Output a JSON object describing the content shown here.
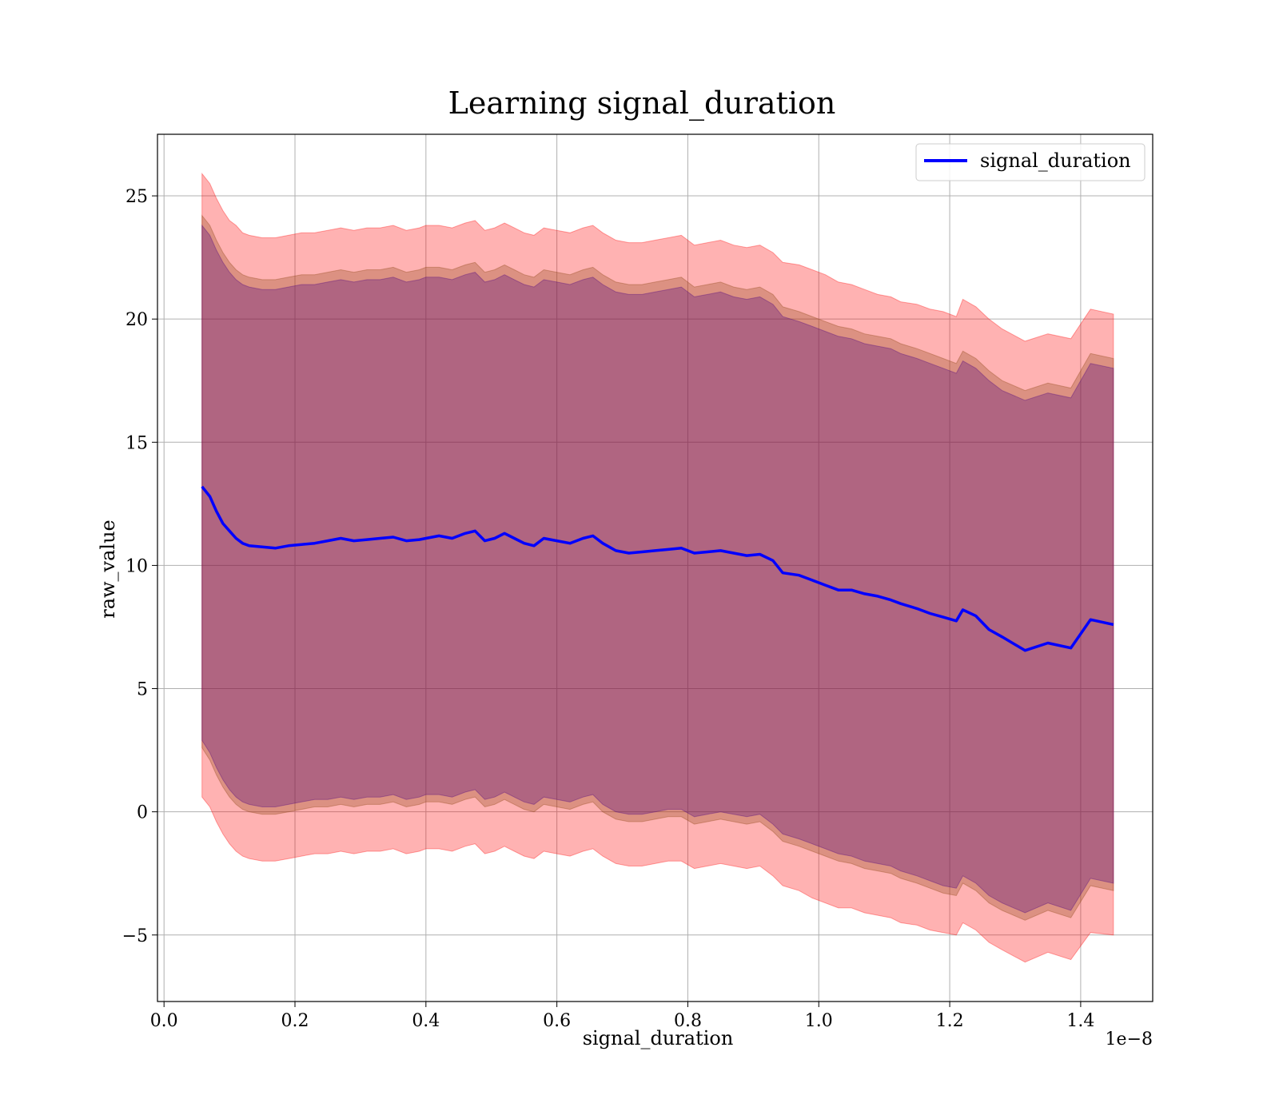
{
  "chart_data": {
    "type": "line",
    "title": "Learning signal_duration",
    "xlabel": "signal_duration",
    "ylabel": "raw_value",
    "x_offset_text": "1e−8",
    "x_ticks": [
      "0.0",
      "0.2",
      "0.4",
      "0.6",
      "0.8",
      "1.0",
      "1.2",
      "1.4"
    ],
    "y_ticks": [
      "−5",
      "0",
      "5",
      "10",
      "15",
      "20",
      "25"
    ],
    "xlim": [
      -0.01,
      1.51
    ],
    "ylim": [
      -7.7,
      27.5
    ],
    "grid": true,
    "legend": {
      "placement": "top-right",
      "entries": [
        "signal_duration"
      ]
    },
    "colors": {
      "line": "#0000ff",
      "band_outer": "#ff0000",
      "band_mid": "#8b4513",
      "band_inner": "#4b0082",
      "grid": "#b0b0b0"
    },
    "series": [
      {
        "name": "signal_duration",
        "x": [
          0.058,
          0.07,
          0.08,
          0.09,
          0.1,
          0.11,
          0.12,
          0.13,
          0.15,
          0.17,
          0.19,
          0.21,
          0.23,
          0.25,
          0.27,
          0.29,
          0.31,
          0.33,
          0.35,
          0.37,
          0.39,
          0.4,
          0.42,
          0.44,
          0.46,
          0.475,
          0.49,
          0.505,
          0.52,
          0.535,
          0.55,
          0.565,
          0.58,
          0.6,
          0.62,
          0.64,
          0.655,
          0.67,
          0.69,
          0.71,
          0.73,
          0.75,
          0.77,
          0.79,
          0.81,
          0.83,
          0.85,
          0.87,
          0.89,
          0.91,
          0.93,
          0.945,
          0.97,
          0.99,
          1.01,
          1.03,
          1.05,
          1.07,
          1.09,
          1.11,
          1.125,
          1.15,
          1.17,
          1.19,
          1.21,
          1.22,
          1.24,
          1.26,
          1.28,
          1.315,
          1.35,
          1.385,
          1.415,
          1.45
        ],
        "y": [
          13.2,
          12.8,
          12.2,
          11.7,
          11.4,
          11.1,
          10.9,
          10.8,
          10.75,
          10.7,
          10.8,
          10.85,
          10.9,
          11.0,
          11.1,
          11.0,
          11.05,
          11.1,
          11.15,
          11.0,
          11.05,
          11.1,
          11.2,
          11.1,
          11.3,
          11.4,
          11.0,
          11.1,
          11.3,
          11.1,
          10.9,
          10.8,
          11.1,
          11.0,
          10.9,
          11.1,
          11.2,
          10.9,
          10.6,
          10.5,
          10.55,
          10.6,
          10.65,
          10.7,
          10.5,
          10.55,
          10.6,
          10.5,
          10.4,
          10.45,
          10.2,
          9.7,
          9.6,
          9.4,
          9.2,
          9.0,
          9.0,
          8.85,
          8.75,
          8.6,
          8.45,
          8.25,
          8.05,
          7.9,
          7.75,
          8.2,
          7.95,
          7.4,
          7.1,
          6.55,
          6.85,
          6.65,
          7.8,
          7.6
        ]
      }
    ],
    "bands": [
      {
        "color": "#ff0000",
        "x": [
          0.058,
          0.07,
          0.08,
          0.09,
          0.1,
          0.11,
          0.12,
          0.13,
          0.15,
          0.17,
          0.19,
          0.21,
          0.23,
          0.25,
          0.27,
          0.29,
          0.31,
          0.33,
          0.35,
          0.37,
          0.39,
          0.4,
          0.42,
          0.44,
          0.46,
          0.475,
          0.49,
          0.505,
          0.52,
          0.535,
          0.55,
          0.565,
          0.58,
          0.6,
          0.62,
          0.64,
          0.655,
          0.67,
          0.69,
          0.71,
          0.73,
          0.75,
          0.77,
          0.79,
          0.81,
          0.83,
          0.85,
          0.87,
          0.89,
          0.91,
          0.93,
          0.945,
          0.97,
          0.99,
          1.01,
          1.03,
          1.05,
          1.07,
          1.09,
          1.11,
          1.125,
          1.15,
          1.17,
          1.19,
          1.21,
          1.22,
          1.24,
          1.26,
          1.28,
          1.315,
          1.35,
          1.385,
          1.415,
          1.45
        ],
        "upper": [
          25.9,
          25.5,
          24.9,
          24.4,
          24.0,
          23.8,
          23.5,
          23.4,
          23.3,
          23.3,
          23.4,
          23.5,
          23.5,
          23.6,
          23.7,
          23.6,
          23.7,
          23.7,
          23.8,
          23.6,
          23.7,
          23.8,
          23.8,
          23.7,
          23.9,
          24.0,
          23.6,
          23.7,
          23.9,
          23.7,
          23.5,
          23.4,
          23.7,
          23.6,
          23.5,
          23.7,
          23.8,
          23.5,
          23.2,
          23.1,
          23.1,
          23.2,
          23.3,
          23.4,
          23.0,
          23.1,
          23.2,
          23.0,
          22.9,
          23.0,
          22.7,
          22.3,
          22.2,
          22.0,
          21.8,
          21.5,
          21.4,
          21.2,
          21.0,
          20.9,
          20.7,
          20.6,
          20.4,
          20.3,
          20.1,
          20.8,
          20.5,
          20.0,
          19.6,
          19.1,
          19.4,
          19.2,
          20.4,
          20.2
        ],
        "lower": [
          0.6,
          0.2,
          -0.4,
          -0.9,
          -1.3,
          -1.6,
          -1.8,
          -1.9,
          -2.0,
          -2.0,
          -1.9,
          -1.8,
          -1.7,
          -1.7,
          -1.6,
          -1.7,
          -1.6,
          -1.6,
          -1.5,
          -1.7,
          -1.6,
          -1.5,
          -1.5,
          -1.6,
          -1.4,
          -1.3,
          -1.7,
          -1.6,
          -1.4,
          -1.6,
          -1.8,
          -1.9,
          -1.6,
          -1.7,
          -1.8,
          -1.6,
          -1.5,
          -1.8,
          -2.1,
          -2.2,
          -2.2,
          -2.1,
          -2.0,
          -2.0,
          -2.3,
          -2.2,
          -2.1,
          -2.2,
          -2.3,
          -2.2,
          -2.6,
          -3.0,
          -3.2,
          -3.5,
          -3.7,
          -3.9,
          -3.9,
          -4.1,
          -4.2,
          -4.3,
          -4.5,
          -4.6,
          -4.8,
          -4.9,
          -5.0,
          -4.5,
          -4.8,
          -5.3,
          -5.6,
          -6.1,
          -5.7,
          -6.0,
          -4.9,
          -5.0
        ]
      },
      {
        "color": "#8b4513",
        "x": [
          0.058,
          0.07,
          0.08,
          0.09,
          0.1,
          0.11,
          0.12,
          0.13,
          0.15,
          0.17,
          0.19,
          0.21,
          0.23,
          0.25,
          0.27,
          0.29,
          0.31,
          0.33,
          0.35,
          0.37,
          0.39,
          0.4,
          0.42,
          0.44,
          0.46,
          0.475,
          0.49,
          0.505,
          0.52,
          0.535,
          0.55,
          0.565,
          0.58,
          0.6,
          0.62,
          0.64,
          0.655,
          0.67,
          0.69,
          0.71,
          0.73,
          0.75,
          0.77,
          0.79,
          0.81,
          0.83,
          0.85,
          0.87,
          0.89,
          0.91,
          0.93,
          0.945,
          0.97,
          0.99,
          1.01,
          1.03,
          1.05,
          1.07,
          1.09,
          1.11,
          1.125,
          1.15,
          1.17,
          1.19,
          1.21,
          1.22,
          1.24,
          1.26,
          1.28,
          1.315,
          1.35,
          1.385,
          1.415,
          1.45
        ],
        "upper": [
          24.2,
          23.8,
          23.2,
          22.7,
          22.3,
          22.0,
          21.8,
          21.7,
          21.6,
          21.6,
          21.7,
          21.8,
          21.8,
          21.9,
          22.0,
          21.9,
          22.0,
          22.0,
          22.1,
          21.9,
          22.0,
          22.1,
          22.1,
          22.0,
          22.2,
          22.3,
          21.9,
          22.0,
          22.2,
          22.0,
          21.8,
          21.7,
          22.0,
          21.9,
          21.8,
          22.0,
          22.1,
          21.8,
          21.5,
          21.4,
          21.4,
          21.5,
          21.6,
          21.7,
          21.3,
          21.4,
          21.5,
          21.3,
          21.2,
          21.3,
          21.0,
          20.5,
          20.3,
          20.1,
          19.9,
          19.7,
          19.6,
          19.4,
          19.3,
          19.2,
          19.0,
          18.8,
          18.6,
          18.4,
          18.2,
          18.7,
          18.4,
          17.9,
          17.5,
          17.1,
          17.4,
          17.2,
          18.6,
          18.4
        ],
        "lower": [
          2.6,
          2.1,
          1.5,
          1.0,
          0.6,
          0.3,
          0.1,
          0.0,
          -0.1,
          -0.1,
          0.0,
          0.1,
          0.2,
          0.2,
          0.3,
          0.2,
          0.3,
          0.3,
          0.4,
          0.2,
          0.3,
          0.4,
          0.4,
          0.3,
          0.5,
          0.6,
          0.2,
          0.3,
          0.5,
          0.3,
          0.1,
          0.0,
          0.3,
          0.2,
          0.1,
          0.3,
          0.4,
          0.0,
          -0.3,
          -0.4,
          -0.4,
          -0.3,
          -0.2,
          -0.2,
          -0.5,
          -0.4,
          -0.3,
          -0.4,
          -0.5,
          -0.4,
          -0.8,
          -1.2,
          -1.4,
          -1.6,
          -1.8,
          -2.0,
          -2.1,
          -2.3,
          -2.4,
          -2.5,
          -2.7,
          -2.9,
          -3.1,
          -3.3,
          -3.4,
          -2.9,
          -3.2,
          -3.7,
          -4.0,
          -4.4,
          -4.0,
          -4.3,
          -3.0,
          -3.2
        ]
      },
      {
        "color": "#4b0082",
        "x": [
          0.058,
          0.07,
          0.08,
          0.09,
          0.1,
          0.11,
          0.12,
          0.13,
          0.15,
          0.17,
          0.19,
          0.21,
          0.23,
          0.25,
          0.27,
          0.29,
          0.31,
          0.33,
          0.35,
          0.37,
          0.39,
          0.4,
          0.42,
          0.44,
          0.46,
          0.475,
          0.49,
          0.505,
          0.52,
          0.535,
          0.55,
          0.565,
          0.58,
          0.6,
          0.62,
          0.64,
          0.655,
          0.67,
          0.69,
          0.71,
          0.73,
          0.75,
          0.77,
          0.79,
          0.81,
          0.83,
          0.85,
          0.87,
          0.89,
          0.91,
          0.93,
          0.945,
          0.97,
          0.99,
          1.01,
          1.03,
          1.05,
          1.07,
          1.09,
          1.11,
          1.125,
          1.15,
          1.17,
          1.19,
          1.21,
          1.22,
          1.24,
          1.26,
          1.28,
          1.315,
          1.35,
          1.385,
          1.415,
          1.45
        ],
        "upper": [
          23.8,
          23.4,
          22.8,
          22.3,
          21.9,
          21.6,
          21.4,
          21.3,
          21.2,
          21.2,
          21.3,
          21.4,
          21.4,
          21.5,
          21.6,
          21.5,
          21.6,
          21.6,
          21.7,
          21.5,
          21.6,
          21.7,
          21.7,
          21.6,
          21.8,
          21.9,
          21.5,
          21.6,
          21.8,
          21.6,
          21.4,
          21.3,
          21.6,
          21.5,
          21.4,
          21.6,
          21.7,
          21.4,
          21.1,
          21.0,
          21.0,
          21.1,
          21.2,
          21.3,
          20.9,
          21.0,
          21.1,
          20.9,
          20.8,
          20.9,
          20.6,
          20.1,
          19.9,
          19.7,
          19.5,
          19.3,
          19.2,
          19.0,
          18.9,
          18.8,
          18.6,
          18.4,
          18.2,
          18.0,
          17.8,
          18.3,
          18.0,
          17.5,
          17.1,
          16.7,
          17.0,
          16.8,
          18.2,
          18.0
        ],
        "lower": [
          2.9,
          2.4,
          1.8,
          1.3,
          0.9,
          0.6,
          0.4,
          0.3,
          0.2,
          0.2,
          0.3,
          0.4,
          0.5,
          0.5,
          0.6,
          0.5,
          0.6,
          0.6,
          0.7,
          0.5,
          0.6,
          0.7,
          0.7,
          0.6,
          0.8,
          0.9,
          0.5,
          0.6,
          0.8,
          0.6,
          0.4,
          0.3,
          0.6,
          0.5,
          0.4,
          0.6,
          0.7,
          0.3,
          0.0,
          -0.1,
          -0.1,
          0.0,
          0.1,
          0.1,
          -0.2,
          -0.1,
          0.0,
          -0.1,
          -0.2,
          -0.1,
          -0.5,
          -0.9,
          -1.1,
          -1.3,
          -1.5,
          -1.7,
          -1.8,
          -2.0,
          -2.1,
          -2.2,
          -2.4,
          -2.6,
          -2.8,
          -3.0,
          -3.1,
          -2.6,
          -2.9,
          -3.4,
          -3.7,
          -4.1,
          -3.7,
          -4.0,
          -2.7,
          -2.9
        ]
      }
    ]
  }
}
